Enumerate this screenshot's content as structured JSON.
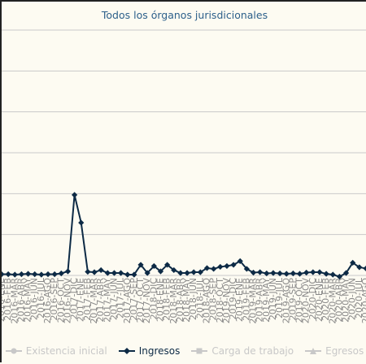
{
  "chart_data": {
    "type": "line",
    "title": "Todos los órganos jurisdicionales",
    "legend_position": "bottom",
    "grid": true,
    "series": [
      {
        "name": "Existencia inicial",
        "visible": false,
        "color": "#c8c8c8",
        "marker": "circle"
      },
      {
        "name": "Ingresos",
        "visible": true,
        "color": "#0d2a45",
        "marker": "diamond",
        "values": [
          3,
          3,
          2,
          3,
          4,
          3,
          2,
          3,
          3,
          5,
          10,
          197,
          129,
          9,
          8,
          13,
          6,
          6,
          6,
          2,
          2,
          26,
          6,
          23,
          10,
          26,
          13,
          6,
          6,
          8,
          8,
          18,
          16,
          21,
          23,
          26,
          35,
          16,
          7,
          8,
          5,
          6,
          5,
          4,
          5,
          4,
          7,
          8,
          8,
          4,
          2,
          -3,
          6,
          31,
          20,
          17
        ]
      },
      {
        "name": "Carga de trabajo",
        "visible": false,
        "color": "#c8c8c8",
        "marker": "square"
      },
      {
        "name": "Egresos",
        "visible": false,
        "color": "#c8c8c8",
        "marker": "triangle"
      }
    ],
    "x": [
      "2016-ENE",
      "2016-FEB",
      "2016-MAR",
      "2016-ABR",
      "2016-MAY",
      "2016-JUN",
      "2016-JUL",
      "2016-AGO",
      "2016-SEP",
      "2016-OCT",
      "2016-NOV",
      "2017-DIC",
      "2017-ENE",
      "2017-FEB",
      "2017-MAR",
      "2017-ABR",
      "2017-MAY",
      "2017-JUN",
      "2017-JUL",
      "2017-AGO",
      "2017-SEP",
      "2017-OCT",
      "2017-NOV",
      "2018-DIC",
      "2018-ENE",
      "2018-FEB",
      "2018-MAR",
      "2018-ABR",
      "2018-MAY",
      "2018-JUN",
      "2018-JUL",
      "2018-AGO",
      "2018-SEP",
      "2018-OCT",
      "2019-NOV",
      "2019-DIC",
      "2019-ENE",
      "2019-FEB",
      "2019-MAR",
      "2019-ABR",
      "2019-MAY",
      "2019-JUN",
      "2019-JUL",
      "2019-AGO",
      "2019-SEP",
      "2019-OCT",
      "2020-NOV",
      "2020-DIC",
      "2020-ENE",
      "2020-FEB",
      "2020-MAR",
      "2020-ABR",
      "2020-MAY",
      "2020-JUN",
      "2020-JUL",
      "2020-AGO"
    ],
    "ylim": [
      0,
      600
    ]
  }
}
